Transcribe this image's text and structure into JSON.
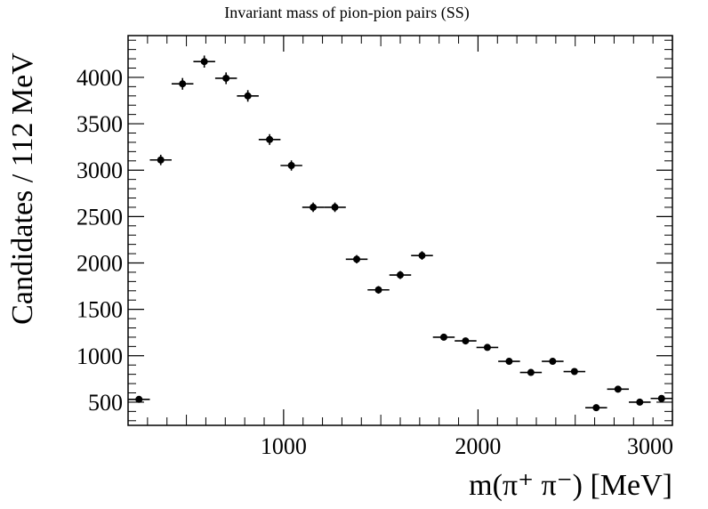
{
  "chart_data": {
    "type": "scatter",
    "title": "Invariant mass of pion-pion pairs (SS)",
    "xlabel": "m(π⁺ π⁻) [MeV]",
    "ylabel": "Candidates / 112 MeV",
    "xlim": [
      200,
      3000
    ],
    "ylim": [
      250,
      4450
    ],
    "x_ticks": [
      1000,
      2000,
      3000
    ],
    "y_ticks": [
      500,
      1000,
      1500,
      2000,
      2500,
      3000,
      3500,
      4000
    ],
    "bin_width": 112,
    "grid": false,
    "series": [
      {
        "x": [
          256,
          368,
          480,
          592,
          704,
          816,
          928,
          1040,
          1152,
          1264,
          1376,
          1488,
          1600,
          1712,
          1824,
          1936,
          2048,
          2160,
          2272,
          2384,
          2496,
          2608,
          2720,
          2832,
          2944
        ],
        "y": [
          530,
          3110,
          3930,
          4170,
          3990,
          3800,
          3330,
          3050,
          2600,
          2600,
          2040,
          1710,
          1870,
          2080,
          1200,
          1160,
          1090,
          940,
          820,
          940,
          830,
          440,
          640,
          500,
          540
        ],
        "yerr": [
          23,
          56,
          63,
          65,
          63,
          62,
          58,
          55,
          51,
          51,
          45,
          41,
          43,
          46,
          35,
          34,
          33,
          31,
          29,
          31,
          29,
          21,
          25,
          22,
          23
        ]
      }
    ]
  }
}
